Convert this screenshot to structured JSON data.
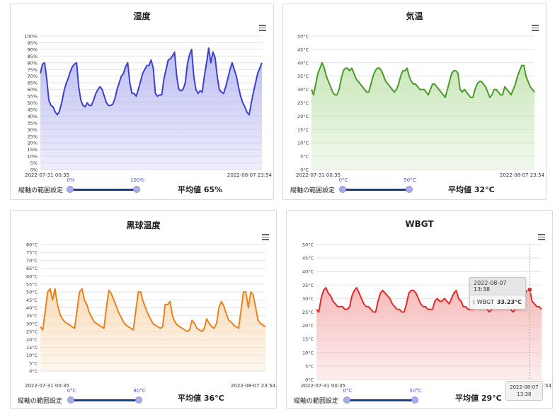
{
  "range_label": "縦軸の範囲設定",
  "chart_data": [
    {
      "type": "area",
      "title": "湿度",
      "ylim": [
        0,
        100
      ],
      "yticks": [
        "0%",
        "5%",
        "10%",
        "15%",
        "20%",
        "25%",
        "30%",
        "35%",
        "40%",
        "45%",
        "50%",
        "55%",
        "60%",
        "65%",
        "70%",
        "75%",
        "80%",
        "85%",
        "90%",
        "95%",
        "100%"
      ],
      "x_start_label": "2022-07-31 00:35",
      "x_end_label": "2022-08-07 23:54",
      "series_color": "#3d3fcf",
      "fill_color": "#b9baf2",
      "grid": true,
      "values": [
        72,
        79,
        80,
        68,
        52,
        48,
        47,
        43,
        41,
        44,
        50,
        58,
        64,
        68,
        73,
        77,
        79,
        80,
        62,
        52,
        48,
        47,
        50,
        48,
        48,
        52,
        57,
        60,
        62,
        60,
        55,
        50,
        48,
        48,
        49,
        53,
        60,
        65,
        70,
        72,
        77,
        80,
        65,
        57,
        57,
        55,
        60,
        66,
        72,
        75,
        78,
        78,
        82,
        76,
        57,
        55,
        56,
        56,
        68,
        75,
        82,
        83,
        85,
        88,
        70,
        60,
        59,
        60,
        65,
        79,
        86,
        90,
        70,
        60,
        57,
        59,
        58,
        70,
        80,
        91,
        80,
        88,
        84,
        70,
        60,
        58,
        57,
        62,
        68,
        75,
        80,
        75,
        70,
        62,
        55,
        50,
        47,
        43,
        41,
        50,
        58,
        65,
        72,
        76,
        80
      ],
      "slider": {
        "min_label": "0%",
        "max_label": "100%"
      },
      "average": "平均値 65%"
    },
    {
      "type": "area",
      "title": "気温",
      "ylim": [
        0,
        50
      ],
      "yticks": [
        "0°C",
        "5°C",
        "10°C",
        "15°C",
        "20°C",
        "25°C",
        "30°C",
        "35°C",
        "40°C",
        "45°C",
        "50°C"
      ],
      "x_start_label": "2022-07-31 00:35",
      "x_end_label": "2022-08-07 23:54",
      "series_color": "#4a9a2a",
      "fill_color": "#c7e6b6",
      "grid": true,
      "values": [
        30,
        28,
        32,
        36,
        38,
        40,
        38,
        35,
        33,
        31,
        29,
        28,
        28,
        30,
        34,
        37,
        38,
        38,
        37,
        38,
        36,
        34,
        33,
        32,
        31,
        30,
        29,
        29,
        32,
        35,
        37,
        38,
        38,
        37,
        35,
        33,
        32,
        31,
        30,
        29,
        30,
        32,
        35,
        37,
        37,
        38,
        35,
        33,
        32,
        32,
        31,
        30,
        30,
        30,
        29,
        28,
        30,
        32,
        32,
        31,
        30,
        29,
        28,
        27,
        30,
        33,
        36,
        37,
        37,
        36,
        30,
        29,
        30,
        29,
        28,
        27,
        27,
        30,
        32,
        33,
        33,
        32,
        31,
        29,
        27,
        28,
        30,
        30,
        29,
        28,
        28,
        31,
        30,
        29,
        28,
        30,
        32,
        35,
        37,
        39,
        39,
        35,
        33,
        31,
        30,
        29
      ],
      "slider": {
        "min_label": "0°C",
        "max_label": "50°C"
      },
      "average": "平均値 32°C"
    },
    {
      "type": "area",
      "title": "黒球温度",
      "ylim": [
        0,
        80
      ],
      "yticks": [
        "0°C",
        "5°C",
        "10°C",
        "15°C",
        "20°C",
        "25°C",
        "30°C",
        "35°C",
        "40°C",
        "45°C",
        "50°C",
        "55°C",
        "60°C",
        "65°C",
        "70°C",
        "75°C",
        "80°C"
      ],
      "x_start_label": "2022-07-31 00:35",
      "x_end_label": "2022-08-07 23:54",
      "series_color": "#e8821e",
      "fill_color": "#fadcb8",
      "grid": true,
      "values": [
        28,
        26,
        38,
        50,
        52,
        45,
        52,
        42,
        36,
        33,
        31,
        30,
        29,
        28,
        27,
        38,
        50,
        52,
        45,
        42,
        37,
        34,
        31,
        30,
        29,
        28,
        27,
        40,
        51,
        49,
        45,
        41,
        37,
        34,
        31,
        29,
        28,
        27,
        26,
        38,
        50,
        50,
        44,
        40,
        36,
        33,
        30,
        29,
        28,
        27,
        28,
        42,
        42,
        44,
        35,
        31,
        29,
        28,
        27,
        26,
        25,
        26,
        32,
        30,
        27,
        26,
        25,
        27,
        33,
        30,
        28,
        27,
        30,
        40,
        44,
        41,
        36,
        32,
        31,
        29,
        28,
        27,
        38,
        50,
        50,
        40,
        50,
        48,
        40,
        32,
        30,
        29,
        28
      ],
      "slider": {
        "min_label": "0°C",
        "max_label": "80°C"
      },
      "average": "平均値 36°C"
    },
    {
      "type": "area",
      "title": "WBGT",
      "ylim": [
        0,
        50
      ],
      "yticks": [
        "0°C",
        "5°C",
        "10°C",
        "15°C",
        "20°C",
        "25°C",
        "30°C",
        "35°C",
        "40°C",
        "45°C",
        "50°C"
      ],
      "x_start_label": "2022-07-31 00:35",
      "x_end_label": "2022-08-07 23:54",
      "series_color": "#e02a2a",
      "fill_color": "#f6b8b8",
      "grid": true,
      "values": [
        26,
        25,
        30,
        33,
        34,
        32,
        31,
        29,
        28,
        27,
        27,
        27,
        26,
        26,
        27,
        31,
        33,
        34,
        32,
        30,
        28,
        27,
        27,
        26,
        25,
        25,
        29,
        32,
        33,
        32,
        31,
        30,
        28,
        27,
        26,
        26,
        25,
        25,
        28,
        32,
        33,
        33,
        32,
        30,
        28,
        27,
        27,
        26,
        26,
        26,
        29,
        30,
        29,
        29,
        30,
        29,
        28,
        30,
        32,
        33,
        30,
        29,
        27,
        27,
        26,
        26,
        26,
        29,
        31,
        30,
        29,
        27,
        26,
        25,
        26,
        27,
        28,
        30,
        31,
        31,
        30,
        27,
        26,
        25,
        26,
        27,
        29,
        31,
        32,
        33,
        33.23,
        29,
        28,
        27,
        27,
        26
      ],
      "slider": {
        "min_label": "0°C",
        "max_label": "50°C"
      },
      "average": "平均値 29°C",
      "tooltip": {
        "date": "2022-08-07 13:38",
        "series": "WBGT",
        "value": "33.23°C",
        "x_label_line1": "2022-08-07",
        "x_label_line2": "13:38"
      }
    }
  ]
}
